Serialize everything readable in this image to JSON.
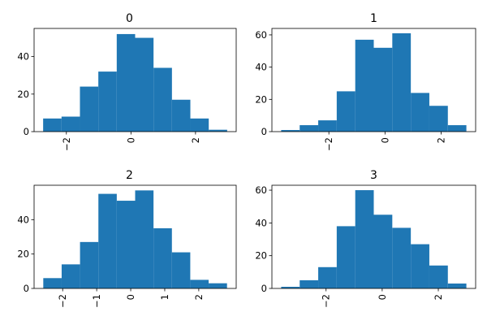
{
  "chart_data": [
    {
      "type": "bar",
      "title": "0",
      "color": "#1f77b4",
      "bins": [
        {
          "x0": -2.72,
          "x1": -2.15,
          "count": 7
        },
        {
          "x0": -2.15,
          "x1": -1.58,
          "count": 8
        },
        {
          "x0": -1.58,
          "x1": -1.01,
          "count": 24
        },
        {
          "x0": -1.01,
          "x1": -0.44,
          "count": 32
        },
        {
          "x0": -0.44,
          "x1": 0.13,
          "count": 52
        },
        {
          "x0": 0.13,
          "x1": 0.7,
          "count": 50
        },
        {
          "x0": 0.7,
          "x1": 1.27,
          "count": 34
        },
        {
          "x0": 1.27,
          "x1": 1.84,
          "count": 17
        },
        {
          "x0": 1.84,
          "x1": 2.41,
          "count": 7
        },
        {
          "x0": 2.41,
          "x1": 2.98,
          "count": 1
        }
      ],
      "xlim": [
        -3.0,
        3.26
      ],
      "ylim": [
        0,
        55
      ],
      "xticks": [
        {
          "v": -2,
          "label": "−2"
        },
        {
          "v": 0,
          "label": "0"
        },
        {
          "v": 2,
          "label": "2"
        }
      ],
      "yticks": [
        {
          "v": 0,
          "label": "0"
        },
        {
          "v": 20,
          "label": "20"
        },
        {
          "v": 40,
          "label": "40"
        }
      ]
    },
    {
      "type": "bar",
      "title": "1",
      "color": "#1f77b4",
      "bins": [
        {
          "x0": -3.7,
          "x1": -3.04,
          "count": 1
        },
        {
          "x0": -3.04,
          "x1": -2.38,
          "count": 4
        },
        {
          "x0": -2.38,
          "x1": -1.72,
          "count": 7
        },
        {
          "x0": -1.72,
          "x1": -1.06,
          "count": 25
        },
        {
          "x0": -1.06,
          "x1": -0.4,
          "count": 57
        },
        {
          "x0": -0.4,
          "x1": 0.26,
          "count": 52
        },
        {
          "x0": 0.26,
          "x1": 0.92,
          "count": 61
        },
        {
          "x0": 0.92,
          "x1": 1.58,
          "count": 24
        },
        {
          "x0": 1.58,
          "x1": 2.24,
          "count": 16
        },
        {
          "x0": 2.24,
          "x1": 2.9,
          "count": 4
        }
      ],
      "xlim": [
        -4.03,
        3.23
      ],
      "ylim": [
        0,
        64
      ],
      "xticks": [
        {
          "v": -2,
          "label": "−2"
        },
        {
          "v": 0,
          "label": "0"
        },
        {
          "v": 2,
          "label": "2"
        }
      ],
      "yticks": [
        {
          "v": 0,
          "label": "0"
        },
        {
          "v": 20,
          "label": "20"
        },
        {
          "v": 40,
          "label": "40"
        },
        {
          "v": 60,
          "label": "60"
        }
      ]
    },
    {
      "type": "bar",
      "title": "2",
      "color": "#1f77b4",
      "bins": [
        {
          "x0": -2.57,
          "x1": -2.03,
          "count": 6
        },
        {
          "x0": -2.03,
          "x1": -1.49,
          "count": 14
        },
        {
          "x0": -1.49,
          "x1": -0.95,
          "count": 27
        },
        {
          "x0": -0.95,
          "x1": -0.41,
          "count": 55
        },
        {
          "x0": -0.41,
          "x1": 0.13,
          "count": 51
        },
        {
          "x0": 0.13,
          "x1": 0.67,
          "count": 57
        },
        {
          "x0": 0.67,
          "x1": 1.21,
          "count": 35
        },
        {
          "x0": 1.21,
          "x1": 1.75,
          "count": 21
        },
        {
          "x0": 1.75,
          "x1": 2.29,
          "count": 5
        },
        {
          "x0": 2.29,
          "x1": 2.83,
          "count": 3
        }
      ],
      "xlim": [
        -2.84,
        3.1
      ],
      "ylim": [
        0,
        60
      ],
      "xticks": [
        {
          "v": -2,
          "label": "−2"
        },
        {
          "v": -1,
          "label": "−1"
        },
        {
          "v": 0,
          "label": "0"
        },
        {
          "v": 1,
          "label": "1"
        },
        {
          "v": 2,
          "label": "2"
        }
      ],
      "yticks": [
        {
          "v": 0,
          "label": "0"
        },
        {
          "v": 20,
          "label": "20"
        },
        {
          "v": 40,
          "label": "40"
        }
      ]
    },
    {
      "type": "bar",
      "title": "3",
      "color": "#1f77b4",
      "bins": [
        {
          "x0": -3.6,
          "x1": -2.94,
          "count": 1
        },
        {
          "x0": -2.94,
          "x1": -2.28,
          "count": 5
        },
        {
          "x0": -2.28,
          "x1": -1.62,
          "count": 13
        },
        {
          "x0": -1.62,
          "x1": -0.96,
          "count": 38
        },
        {
          "x0": -0.96,
          "x1": -0.3,
          "count": 60
        },
        {
          "x0": -0.3,
          "x1": 0.36,
          "count": 45
        },
        {
          "x0": 0.36,
          "x1": 1.02,
          "count": 37
        },
        {
          "x0": 1.02,
          "x1": 1.68,
          "count": 27
        },
        {
          "x0": 1.68,
          "x1": 2.34,
          "count": 14
        },
        {
          "x0": 2.34,
          "x1": 3.0,
          "count": 3
        }
      ],
      "xlim": [
        -3.93,
        3.33
      ],
      "ylim": [
        0,
        63
      ],
      "xticks": [
        {
          "v": -2,
          "label": "−2"
        },
        {
          "v": 0,
          "label": "0"
        },
        {
          "v": 2,
          "label": "2"
        }
      ],
      "yticks": [
        {
          "v": 0,
          "label": "0"
        },
        {
          "v": 20,
          "label": "20"
        },
        {
          "v": 40,
          "label": "40"
        },
        {
          "v": 60,
          "label": "60"
        }
      ]
    }
  ]
}
